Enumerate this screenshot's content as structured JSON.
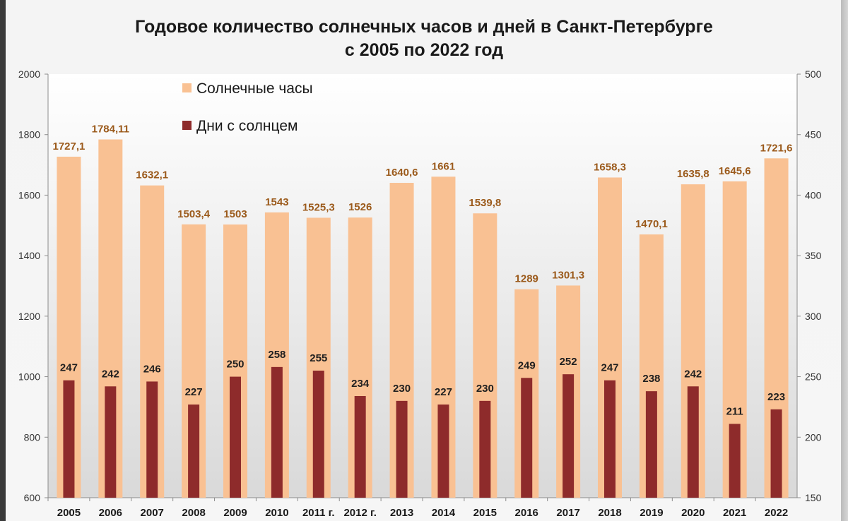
{
  "chart_data": {
    "type": "bar",
    "title": "Годовое количество солнечных часов и дней в Санкт-Петербурге",
    "subtitle": "с 2005 по 2022 год",
    "categories": [
      "2005",
      "2006",
      "2007",
      "2008",
      "2009",
      "2010",
      "2011 г.",
      "2012 г.",
      "2013",
      "2014",
      "2015",
      "2016",
      "2017",
      "2018",
      "2019",
      "2020",
      "2021",
      "2022"
    ],
    "series": [
      {
        "name": "Солнечные часы",
        "axis": "left",
        "color": "#f9c193",
        "label_color": "#9b5a1b",
        "values": [
          1727.1,
          1784.11,
          1632.1,
          1503.4,
          1503,
          1543,
          1525.3,
          1526,
          1640.6,
          1661,
          1539.8,
          1289,
          1301.3,
          1658.3,
          1470.1,
          1635.8,
          1645.6,
          1721.6
        ],
        "labels": [
          "1727,1",
          "1784,11",
          "1632,1",
          "1503,4",
          "1503",
          "1543",
          "1525,3",
          "1526",
          "1640,6",
          "1661",
          "1539,8",
          "1289",
          "1301,3",
          "1658,3",
          "1470,1",
          "1635,8",
          "1645,6",
          "1721,6"
        ]
      },
      {
        "name": "Дни с солнцем",
        "axis": "right",
        "color": "#8e2b2b",
        "label_color": "#1f1f1f",
        "values": [
          247,
          242,
          246,
          227,
          250,
          258,
          255,
          234,
          230,
          227,
          230,
          249,
          252,
          247,
          238,
          242,
          211,
          223
        ],
        "labels": [
          "247",
          "242",
          "246",
          "227",
          "250",
          "258",
          "255",
          "234",
          "230",
          "227",
          "230",
          "249",
          "252",
          "247",
          "238",
          "242",
          "211",
          "223"
        ]
      }
    ],
    "y_left": {
      "min": 600,
      "max": 2000,
      "ticks": [
        "600",
        "800",
        "1000",
        "1200",
        "1400",
        "1600",
        "1800",
        "2000"
      ]
    },
    "y_right": {
      "min": 150,
      "max": 500,
      "ticks": [
        "150",
        "200",
        "250",
        "300",
        "350",
        "400",
        "450",
        "500"
      ]
    },
    "grid": false,
    "legend_position": "top-left"
  }
}
